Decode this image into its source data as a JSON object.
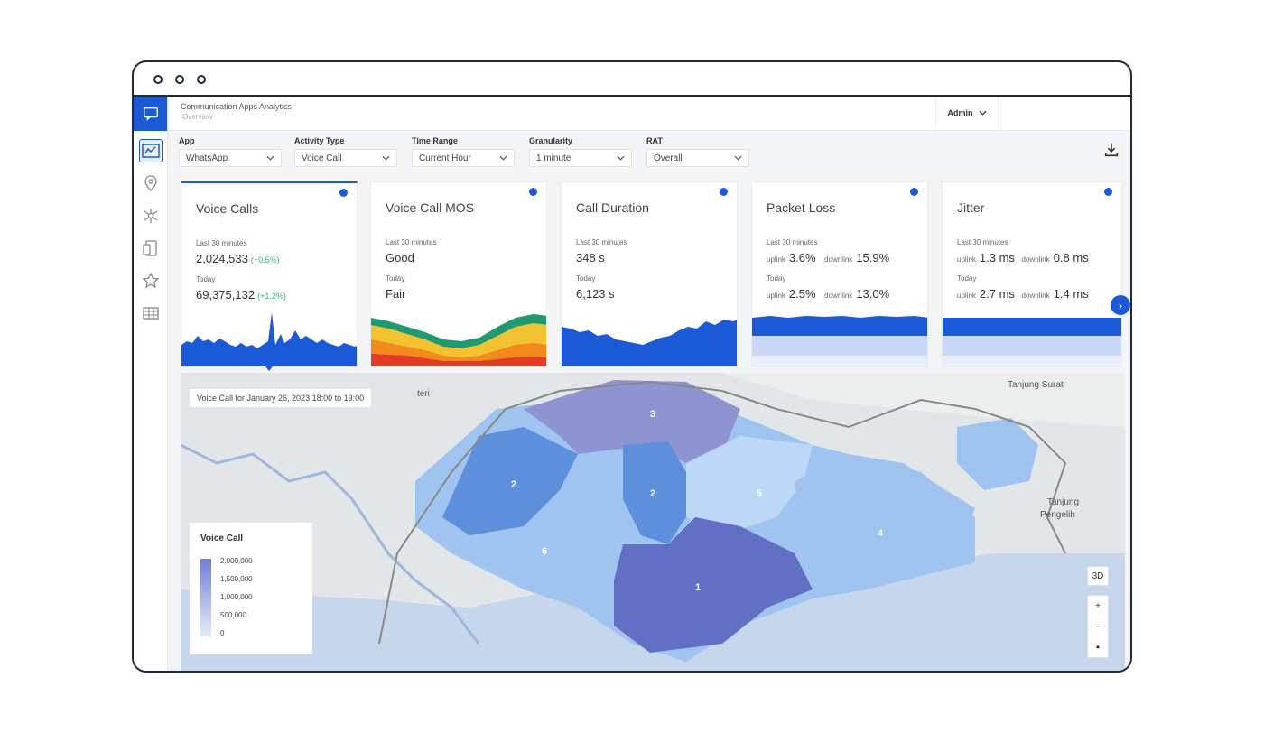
{
  "header": {
    "app_title": "Communication Apps Analytics",
    "breadcrumb": "Overview",
    "user_menu": "Admin"
  },
  "filters": [
    {
      "label": "App",
      "value": "WhatsApp"
    },
    {
      "label": "Activity Type",
      "value": "Voice Call"
    },
    {
      "label": "Time Range",
      "value": "Current Hour"
    },
    {
      "label": "Granularity",
      "value": "1 minute"
    },
    {
      "label": "RAT",
      "value": "Overall"
    }
  ],
  "cards": {
    "voice_calls": {
      "title": "Voice Calls",
      "cap1": "Last 30 minutes",
      "value1": "2,024,533",
      "delta1": "(+0.5%)",
      "cap2": "Today",
      "value2": "69,375,132",
      "delta2": "(+1.2%)"
    },
    "mos": {
      "title": "Voice Call MOS",
      "cap1": "Last 30 minutes",
      "value1": "Good",
      "cap2": "Today",
      "value2": "Fair"
    },
    "duration": {
      "title": "Call Duration",
      "cap1": "Last 30 minutes",
      "value1": "348 s",
      "cap2": "Today",
      "value2": "6,123 s"
    },
    "packet_loss": {
      "title": "Packet Loss",
      "cap1": "Last 30 minutes",
      "uplink_label": "uplink",
      "downlink_label": "downlink",
      "up1": "3.6%",
      "down1": "15.9%",
      "cap2": "Today",
      "up2": "2.5%",
      "down2": "13.0%"
    },
    "jitter": {
      "title": "Jitter",
      "cap1": "Last 30 minutes",
      "uplink_label": "uplink",
      "downlink_label": "downlink",
      "up1": "1.3 ms",
      "down1": "0.8 ms",
      "cap2": "Today",
      "up2": "2.7 ms",
      "down2": "1.4 ms"
    }
  },
  "map": {
    "banner": "Voice Call for January 26, 2023 18:00 to 19:00",
    "place_labels": [
      "Tanjung Surat",
      "Tanjung",
      "Pengelih",
      "teri"
    ],
    "legend": {
      "title": "Voice Call",
      "ticks": [
        "2,000,000",
        "1,500,000",
        "1,000,000",
        "500,000",
        "0"
      ]
    },
    "regions": [
      "3",
      "2",
      "2",
      "5",
      "6",
      "4",
      "1"
    ],
    "controls": {
      "view_3d": "3D",
      "zoom_in": "+",
      "zoom_out": "−",
      "compass": "▲"
    }
  },
  "colors": {
    "accent": "#1a5ad6",
    "positive": "#2bb58a"
  },
  "icons": [
    "chat-icon",
    "dashboard-icon",
    "location-icon",
    "network-icon",
    "devices-icon",
    "star-icon",
    "table-icon",
    "download-icon",
    "info-icon",
    "chevron-right-icon"
  ]
}
